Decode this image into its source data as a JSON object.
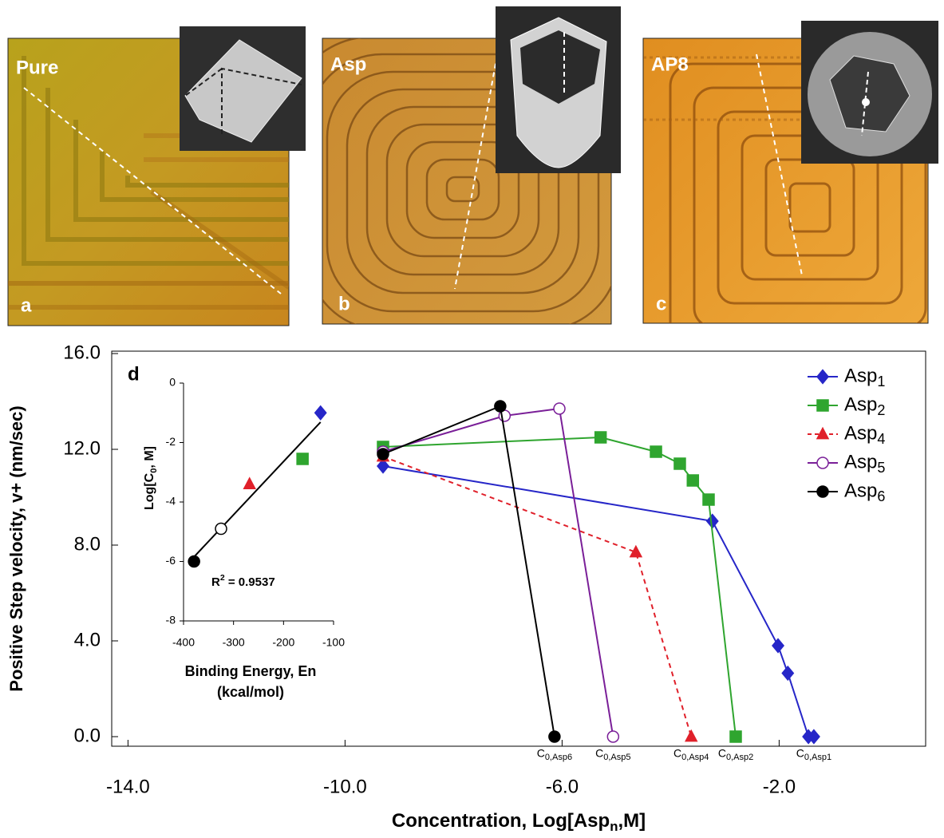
{
  "panels": [
    {
      "label": "Pure",
      "letter": "a"
    },
    {
      "label": "Asp",
      "letter": "b"
    },
    {
      "label": "AP8",
      "letter": "c"
    }
  ],
  "chart_data": [
    {
      "type": "line",
      "panel_label": "d",
      "x_label": [
        "Concentration, Log[Asp",
        "n",
        ",M]"
      ],
      "y_label": "Positive Step velocity, v+ (nm/sec)",
      "xlim": [
        -14.3,
        0.7
      ],
      "xticks": [
        {
          "value": -14,
          "label": "-14.0"
        },
        {
          "value": -10,
          "label": "-10.0"
        },
        {
          "value": -6,
          "label": "-6.0"
        },
        {
          "value": -2,
          "label": "-2.0"
        }
      ],
      "ylim": [
        -0.4,
        16.1
      ],
      "yticks": [
        {
          "value": 0,
          "label": "0.0"
        },
        {
          "value": 4,
          "label": "4.0"
        },
        {
          "value": 8,
          "label": "8.0"
        },
        {
          "value": 12,
          "label": "12.0"
        },
        {
          "value": 16,
          "label": "16.0"
        }
      ],
      "series": [
        {
          "name": "Asp1",
          "color": "#2626c8",
          "marker": "diamond",
          "filled": true,
          "dash": false,
          "x": [
            -9.3,
            -3.23,
            -2.02,
            -1.84,
            -1.46,
            -1.36
          ],
          "values": [
            11.3,
            9.0,
            3.8,
            2.65,
            0,
            0
          ]
        },
        {
          "name": "Asp2",
          "color": "#2fa52f",
          "marker": "square",
          "filled": true,
          "dash": false,
          "x": [
            -9.3,
            -5.29,
            -4.27,
            -3.83,
            -3.59,
            -3.3,
            -2.8
          ],
          "values": [
            12.1,
            12.5,
            11.9,
            11.4,
            10.7,
            9.9,
            0
          ]
        },
        {
          "name": "Asp4",
          "color": "#e0202a",
          "marker": "triangle",
          "filled": true,
          "dash": true,
          "x": [
            -9.3,
            -4.64,
            -3.62
          ],
          "values": [
            11.7,
            7.7,
            0
          ]
        },
        {
          "name": "Asp5",
          "color": "#7a1f98",
          "marker": "circle",
          "filled": false,
          "dash": false,
          "x": [
            -9.3,
            -7.06,
            -6.05,
            -5.06
          ],
          "values": [
            11.9,
            13.4,
            13.7,
            0
          ]
        },
        {
          "name": "Asp6",
          "color": "#000000",
          "marker": "circle",
          "filled": true,
          "dash": false,
          "x": [
            -9.3,
            -7.14,
            -6.14
          ],
          "values": [
            11.8,
            13.8,
            0
          ]
        }
      ],
      "annotations": [
        {
          "text": "C0,Asp6",
          "x": -6.14
        },
        {
          "text": "C0,Asp5",
          "x": -5.06
        },
        {
          "text": "C0,Asp4",
          "x": -3.62
        },
        {
          "text": "C0,Asp2",
          "x": -2.8
        },
        {
          "text": "C0,Asp1",
          "x": -1.36
        }
      ],
      "legend": "upper right"
    },
    {
      "type": "scatter",
      "x_label": [
        "Binding Energy, En",
        "(kcal/mol)"
      ],
      "y_label": [
        "Log[C",
        "0",
        ", M]"
      ],
      "annotation": [
        "R",
        "2",
        " = 0.9537"
      ],
      "xlim": [
        -400,
        -100
      ],
      "xticks": [
        -400,
        -300,
        -200,
        -100
      ],
      "ylim": [
        -8,
        0
      ],
      "yticks": [
        0,
        -2,
        -4,
        -6,
        -8
      ],
      "fit_line": true,
      "points": [
        {
          "x": -379,
          "value": -6.0,
          "color": "#000000",
          "marker": "circle",
          "filled": true
        },
        {
          "x": -325,
          "value": -4.9,
          "color": "#000000",
          "marker": "circle",
          "filled": false
        },
        {
          "x": -268,
          "value": -3.4,
          "color": "#e0202a",
          "marker": "triangle",
          "filled": true
        },
        {
          "x": -162,
          "value": -2.55,
          "color": "#2fa52f",
          "marker": "square",
          "filled": true
        },
        {
          "x": -126,
          "value": -1.0,
          "color": "#2626c8",
          "marker": "diamond",
          "filled": true
        }
      ]
    }
  ]
}
